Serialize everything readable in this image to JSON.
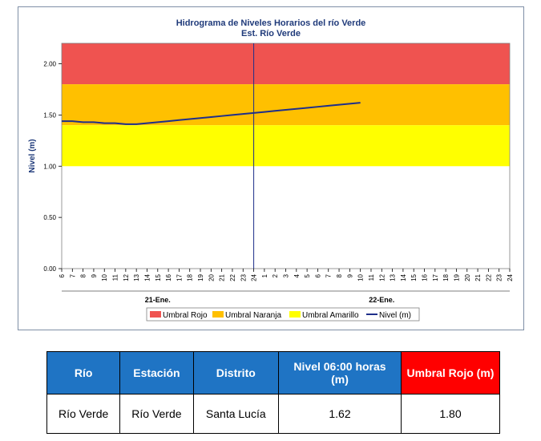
{
  "chart_data": {
    "type": "line",
    "title": "Hidrograma de Niveles Horarios del río Verde",
    "subtitle": "Est. Río Verde",
    "ylabel": "Nivel (m)",
    "xlabel": "",
    "ylim": [
      0,
      2.2
    ],
    "y_ticks": [
      "0.00",
      "0.50",
      "1.00",
      "1.50",
      "2.00"
    ],
    "x_tick_labels": [
      "6",
      "7",
      "8",
      "9",
      "10",
      "11",
      "12",
      "13",
      "14",
      "15",
      "16",
      "17",
      "18",
      "19",
      "20",
      "21",
      "22",
      "23",
      "24",
      "1",
      "2",
      "3",
      "4",
      "5",
      "6",
      "7",
      "8",
      "9",
      "10",
      "11",
      "12",
      "13",
      "14",
      "15",
      "16",
      "17",
      "18",
      "19",
      "20",
      "21",
      "22",
      "23",
      "24"
    ],
    "date_labels": [
      "21-Ene.",
      "22-Ene."
    ],
    "bands": [
      {
        "name": "Umbral Rojo",
        "from": 1.8,
        "to": 2.2,
        "color": "#ef5350"
      },
      {
        "name": "Umbral Naranja",
        "from": 1.4,
        "to": 1.8,
        "color": "#ffc000"
      },
      {
        "name": "Umbral Amarillo",
        "from": 1.0,
        "to": 1.4,
        "color": "#ffff00"
      }
    ],
    "series": [
      {
        "name": "Nivel (m)",
        "color": "#1f2f8a",
        "values": [
          1.44,
          1.44,
          1.43,
          1.43,
          1.42,
          1.42,
          1.41,
          1.41,
          1.42,
          1.43,
          1.44,
          1.45,
          1.46,
          1.47,
          1.48,
          1.49,
          1.5,
          1.51,
          1.52,
          1.53,
          1.54,
          1.55,
          1.56,
          1.57,
          1.58,
          1.59,
          1.6,
          1.61,
          1.62
        ]
      }
    ],
    "legend": [
      "Umbral Rojo",
      "Umbral Naranja",
      "Umbral Amarillo",
      "Nivel (m)"
    ],
    "legend_position": "bottom",
    "grid": false
  },
  "table": {
    "headers": [
      "Río",
      "Estación",
      "Distrito",
      "Nivel 06:00 horas (m)",
      "Umbral Rojo (m)"
    ],
    "row": [
      "Río Verde",
      "Río Verde",
      "Santa Lucía",
      "1.62",
      "1.80"
    ]
  }
}
